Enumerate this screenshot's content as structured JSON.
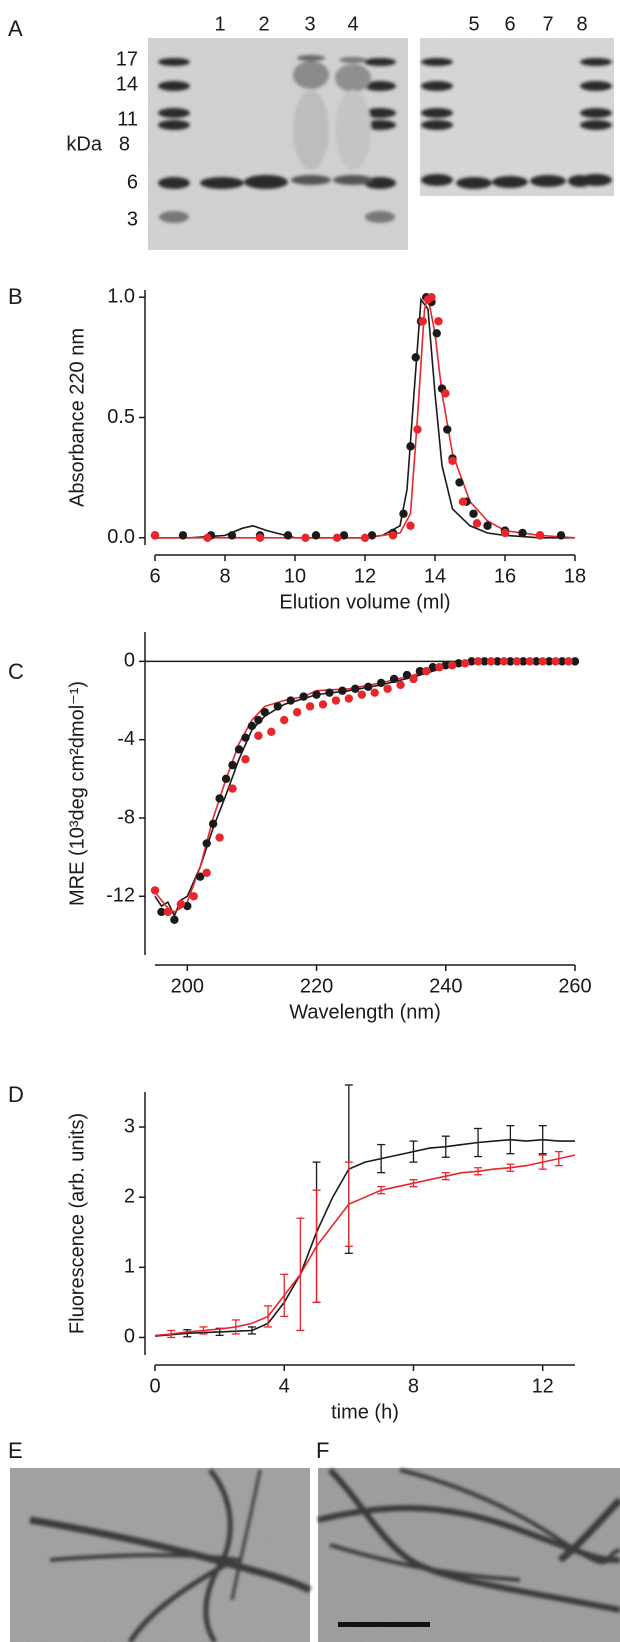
{
  "panel_labels": [
    "A",
    "B",
    "C",
    "D",
    "E",
    "F"
  ],
  "gel": {
    "lane_labels": [
      "1",
      "2",
      "3",
      "4",
      "5",
      "6",
      "7",
      "8"
    ],
    "marker_labels": [
      "17",
      "14",
      "11",
      "8",
      "6",
      "3"
    ],
    "unit": "kDa"
  },
  "chart_data": [
    {
      "type": "line",
      "xlabel": "Elution volume (ml)",
      "ylabel": "Absorbance 220 nm",
      "xlim": [
        6,
        18
      ],
      "xticks": [
        6,
        8,
        10,
        12,
        14,
        16,
        18
      ],
      "ylim": [
        -0.03,
        1.03
      ],
      "yticks": [
        {
          "value": 0,
          "label": "0.0"
        },
        {
          "value": 0.5,
          "label": "0.5"
        },
        {
          "value": 1,
          "label": "1.0"
        }
      ],
      "series": [
        {
          "style": "line",
          "color": "#1a1a1a",
          "x": [
            6,
            7,
            8,
            8.5,
            8.8,
            9.2,
            10,
            11,
            12,
            12.5,
            13,
            13.2,
            13.4,
            13.6,
            13.8,
            14,
            14.2,
            14.5,
            15,
            15.5,
            16,
            17,
            18
          ],
          "values": [
            0,
            0,
            0.01,
            0.04,
            0.05,
            0.03,
            0,
            0,
            0,
            0.01,
            0.05,
            0.2,
            0.6,
            0.99,
            0.95,
            0.6,
            0.3,
            0.12,
            0.05,
            0.02,
            0.01,
            0,
            0
          ]
        },
        {
          "style": "line",
          "color": "#e8262b",
          "x": [
            6,
            8,
            10,
            12,
            13,
            13.3,
            13.5,
            13.7,
            13.8,
            14,
            14.2,
            14.5,
            15,
            15.5,
            16,
            17,
            18
          ],
          "values": [
            0,
            0,
            0,
            0,
            0.02,
            0.1,
            0.5,
            0.95,
            1.0,
            0.85,
            0.6,
            0.35,
            0.15,
            0.07,
            0.03,
            0.01,
            0
          ]
        },
        {
          "style": "scatter",
          "color": "#1a1a1a",
          "x": [
            6,
            6.8,
            7.6,
            8.2,
            9,
            9.8,
            10.6,
            11.4,
            12.2,
            12.8,
            13.1,
            13.3,
            13.45,
            13.6,
            13.75,
            13.9,
            14.05,
            14.2,
            14.35,
            14.5,
            14.7,
            14.9,
            15.1,
            15.5,
            16,
            16.5,
            17,
            17.6
          ],
          "values": [
            0.01,
            0.01,
            0.01,
            0.01,
            0.01,
            0.01,
            0.01,
            0.01,
            0.01,
            0.02,
            0.1,
            0.38,
            0.75,
            0.9,
            1.0,
            0.98,
            0.85,
            0.62,
            0.45,
            0.33,
            0.23,
            0.15,
            0.1,
            0.05,
            0.03,
            0.02,
            0.01,
            0.01
          ]
        },
        {
          "style": "scatter",
          "color": "#e8262b",
          "x": [
            6,
            7.5,
            9,
            10.3,
            11.2,
            12,
            12.8,
            13.3,
            13.5,
            13.65,
            13.8,
            13.9,
            14.1,
            14.3,
            14.5,
            14.8,
            15.2,
            16,
            17
          ],
          "values": [
            0.01,
            0,
            0,
            0,
            0,
            0,
            0.01,
            0.05,
            0.45,
            0.9,
            0.99,
            1.0,
            0.9,
            0.6,
            0.32,
            0.15,
            0.06,
            0.02,
            0.01
          ]
        }
      ]
    },
    {
      "type": "line",
      "xlabel": "Wavelength (nm)",
      "ylabel": "MRE (10³deg cm²dmol⁻¹)",
      "zero_line": true,
      "xlim": [
        195,
        260
      ],
      "xticks": [
        200,
        220,
        240,
        260
      ],
      "ylim": [
        -15,
        1.5
      ],
      "yticks": [
        0,
        -4,
        -8,
        -12
      ],
      "series": [
        {
          "style": "line",
          "color": "#1a1a1a",
          "x": [
            195,
            196,
            197,
            198,
            199,
            200,
            202,
            204,
            206,
            208,
            210,
            212,
            215,
            218,
            220,
            225,
            230,
            235,
            240,
            245,
            250,
            255,
            260
          ],
          "values": [
            -12,
            -12.5,
            -12.3,
            -13,
            -12.2,
            -12,
            -10.5,
            -8.5,
            -6.8,
            -5,
            -3.5,
            -2.8,
            -2.2,
            -1.9,
            -1.7,
            -1.5,
            -1.2,
            -0.8,
            -0.3,
            0,
            0,
            0,
            0
          ]
        },
        {
          "style": "line",
          "color": "#e8262b",
          "x": [
            195,
            196,
            197,
            198,
            199,
            200,
            202,
            204,
            206,
            208,
            210,
            212,
            215,
            218,
            220,
            225,
            230,
            235,
            240,
            245,
            250,
            255,
            260
          ],
          "values": [
            -11.8,
            -12.2,
            -12.6,
            -12.8,
            -12.6,
            -12.3,
            -10.5,
            -8,
            -6,
            -4.2,
            -3,
            -2.3,
            -2,
            -1.8,
            -1.5,
            -1.4,
            -1.1,
            -0.7,
            -0.2,
            0,
            0,
            0,
            0
          ]
        },
        {
          "style": "scatter",
          "color": "#1a1a1a",
          "x": [
            196,
            198,
            200,
            202,
            203,
            204,
            205,
            206,
            207,
            208,
            209,
            210,
            211,
            212,
            214,
            216,
            218,
            220,
            222,
            224,
            226,
            228,
            230,
            232,
            234,
            236,
            238,
            240,
            242,
            244,
            246,
            248,
            250,
            252,
            254,
            256,
            258,
            260
          ],
          "values": [
            -12.8,
            -13.2,
            -12.5,
            -11,
            -9.3,
            -8.3,
            -7,
            -6,
            -5.3,
            -4.5,
            -3.9,
            -3.3,
            -3,
            -2.6,
            -2.3,
            -2,
            -1.8,
            -1.7,
            -1.6,
            -1.5,
            -1.4,
            -1.3,
            -1.1,
            -0.9,
            -0.7,
            -0.5,
            -0.3,
            -0.2,
            -0.1,
            0,
            0,
            0,
            0,
            0,
            0,
            0,
            0,
            0
          ]
        },
        {
          "style": "scatter",
          "color": "#e8262b",
          "x": [
            195,
            197,
            199,
            201,
            203,
            205,
            207,
            209,
            211,
            213,
            215,
            217,
            219,
            221,
            223,
            225,
            227,
            229,
            231,
            233,
            235,
            237,
            239,
            241,
            243,
            245,
            247,
            249,
            251,
            253,
            255,
            257,
            259
          ],
          "values": [
            -11.7,
            -12.8,
            -12.4,
            -12,
            -10.8,
            -9,
            -6.5,
            -5,
            -3.8,
            -3.6,
            -3,
            -2.6,
            -2.3,
            -2.2,
            -2,
            -1.9,
            -1.7,
            -1.6,
            -1.4,
            -1.2,
            -0.9,
            -0.5,
            -0.3,
            -0.2,
            -0.1,
            0,
            0,
            0,
            0,
            0,
            0,
            0,
            0
          ]
        }
      ]
    },
    {
      "type": "line",
      "xlabel": "time (h)",
      "ylabel": "Fluorescence (arb. units)",
      "xlim": [
        0,
        13
      ],
      "xticks": [
        0,
        4,
        8,
        12
      ],
      "ylim": [
        -0.25,
        3.5
      ],
      "yticks": [
        0,
        1,
        2,
        3
      ],
      "series": [
        {
          "style": "line",
          "color": "#1a1a1a",
          "x": [
            0,
            0.5,
            1,
            1.5,
            2,
            2.5,
            3,
            3.5,
            4,
            4.5,
            5,
            5.5,
            6,
            6.5,
            7,
            7.5,
            8,
            8.5,
            9,
            9.5,
            10,
            10.5,
            11,
            11.5,
            12,
            12.5,
            13
          ],
          "values": [
            0.02,
            0.04,
            0.06,
            0.07,
            0.08,
            0.09,
            0.1,
            0.2,
            0.5,
            0.9,
            1.5,
            2.0,
            2.4,
            2.5,
            2.55,
            2.6,
            2.65,
            2.7,
            2.72,
            2.75,
            2.78,
            2.8,
            2.82,
            2.8,
            2.82,
            2.8,
            2.8
          ],
          "errors": [
            null,
            null,
            0.05,
            null,
            0.05,
            null,
            0.05,
            null,
            null,
            null,
            1.0,
            null,
            1.2,
            null,
            0.2,
            null,
            0.15,
            null,
            0.15,
            null,
            0.2,
            null,
            0.2,
            null,
            0.2,
            null,
            null
          ]
        },
        {
          "style": "line",
          "color": "#e8262b",
          "x": [
            0,
            0.5,
            1,
            1.5,
            2,
            2.5,
            3,
            3.5,
            4,
            4.5,
            5,
            5.5,
            6,
            6.5,
            7,
            7.5,
            8,
            8.5,
            9,
            9.5,
            10,
            10.5,
            11,
            11.5,
            12,
            12.5,
            13
          ],
          "values": [
            0.03,
            0.05,
            0.08,
            0.1,
            0.12,
            0.15,
            0.2,
            0.3,
            0.6,
            0.9,
            1.3,
            1.6,
            1.9,
            2.0,
            2.1,
            2.15,
            2.2,
            2.25,
            2.3,
            2.35,
            2.37,
            2.4,
            2.42,
            2.45,
            2.5,
            2.55,
            2.6
          ],
          "errors": [
            null,
            0.05,
            null,
            0.05,
            null,
            0.1,
            null,
            0.15,
            0.3,
            0.8,
            0.8,
            null,
            0.6,
            null,
            0.05,
            null,
            0.05,
            null,
            0.05,
            null,
            0.05,
            null,
            0.05,
            null,
            0.1,
            0.1,
            null
          ]
        }
      ]
    }
  ]
}
